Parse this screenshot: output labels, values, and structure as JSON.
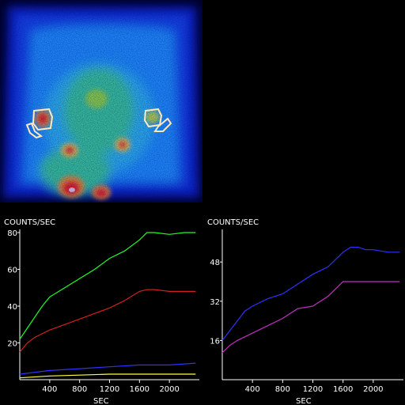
{
  "scan": {
    "colors": {
      "background": "#000000",
      "low": "#1030c0",
      "mid": "#20a0ff",
      "high": "#30e060",
      "peak": "#ff2010",
      "roi_outline": "#ffe8c0"
    }
  },
  "chart_data": [
    {
      "type": "line",
      "ylabel": "COUNTS/SEC",
      "xlabel": "SEC",
      "xlim": [
        0,
        2400
      ],
      "ylim": [
        0,
        80
      ],
      "xticks": [
        400,
        800,
        1200,
        1600,
        2000
      ],
      "xtick_labels": [
        "400",
        "800",
        "1200",
        "1600",
        "2000"
      ],
      "yticks": [
        20,
        40,
        60,
        80
      ],
      "ytick_labels": [
        "20",
        "40",
        "60",
        "80"
      ],
      "grid": false,
      "series": [
        {
          "color": "#20ff20",
          "x": [
            0,
            100,
            200,
            300,
            400,
            600,
            800,
            1000,
            1200,
            1400,
            1600,
            1700,
            1800,
            2000,
            2200,
            2350
          ],
          "y": [
            22,
            28,
            34,
            40,
            45,
            50,
            55,
            60,
            66,
            70,
            76,
            80,
            80,
            79,
            80,
            80
          ]
        },
        {
          "color": "#d02020",
          "x": [
            0,
            100,
            200,
            400,
            600,
            800,
            1000,
            1200,
            1400,
            1600,
            1700,
            1800,
            2000,
            2200,
            2350
          ],
          "y": [
            15,
            20,
            23,
            27,
            30,
            33,
            36,
            39,
            43,
            48,
            49,
            49,
            48,
            48,
            48
          ]
        },
        {
          "color": "#3030ff",
          "x": [
            0,
            400,
            800,
            1200,
            1600,
            2000,
            2350
          ],
          "y": [
            3,
            5,
            6,
            7,
            8,
            8,
            9
          ]
        },
        {
          "color": "#ffff40",
          "x": [
            0,
            400,
            800,
            1200,
            1600,
            2000,
            2350
          ],
          "y": [
            1,
            2,
            2.5,
            3,
            3,
            3,
            3
          ]
        }
      ]
    },
    {
      "type": "line",
      "ylabel": "COUNTS/SEC",
      "xlabel": "SEC",
      "xlim": [
        0,
        2400
      ],
      "ylim": [
        0,
        60
      ],
      "xticks": [
        400,
        800,
        1200,
        1600,
        2000
      ],
      "xtick_labels": [
        "400",
        "800",
        "1200",
        "1600",
        "2000"
      ],
      "yticks": [
        16,
        32,
        48
      ],
      "ytick_labels": [
        "16",
        "32",
        "48"
      ],
      "grid": false,
      "series": [
        {
          "color": "#3030ff",
          "x": [
            0,
            100,
            200,
            300,
            400,
            600,
            800,
            1000,
            1200,
            1400,
            1600,
            1700,
            1800,
            1900,
            2000,
            2200,
            2350
          ],
          "y": [
            16,
            20,
            24,
            28,
            30,
            33,
            35,
            39,
            43,
            46,
            52,
            54,
            54,
            53,
            53,
            52,
            52
          ]
        },
        {
          "color": "#c030c0",
          "x": [
            0,
            100,
            200,
            400,
            600,
            800,
            1000,
            1200,
            1400,
            1600,
            1700,
            1800,
            2000,
            2200,
            2350
          ],
          "y": [
            11,
            14,
            16,
            19,
            22,
            25,
            29,
            30,
            34,
            40,
            40,
            40,
            40,
            40,
            40
          ]
        }
      ]
    }
  ]
}
